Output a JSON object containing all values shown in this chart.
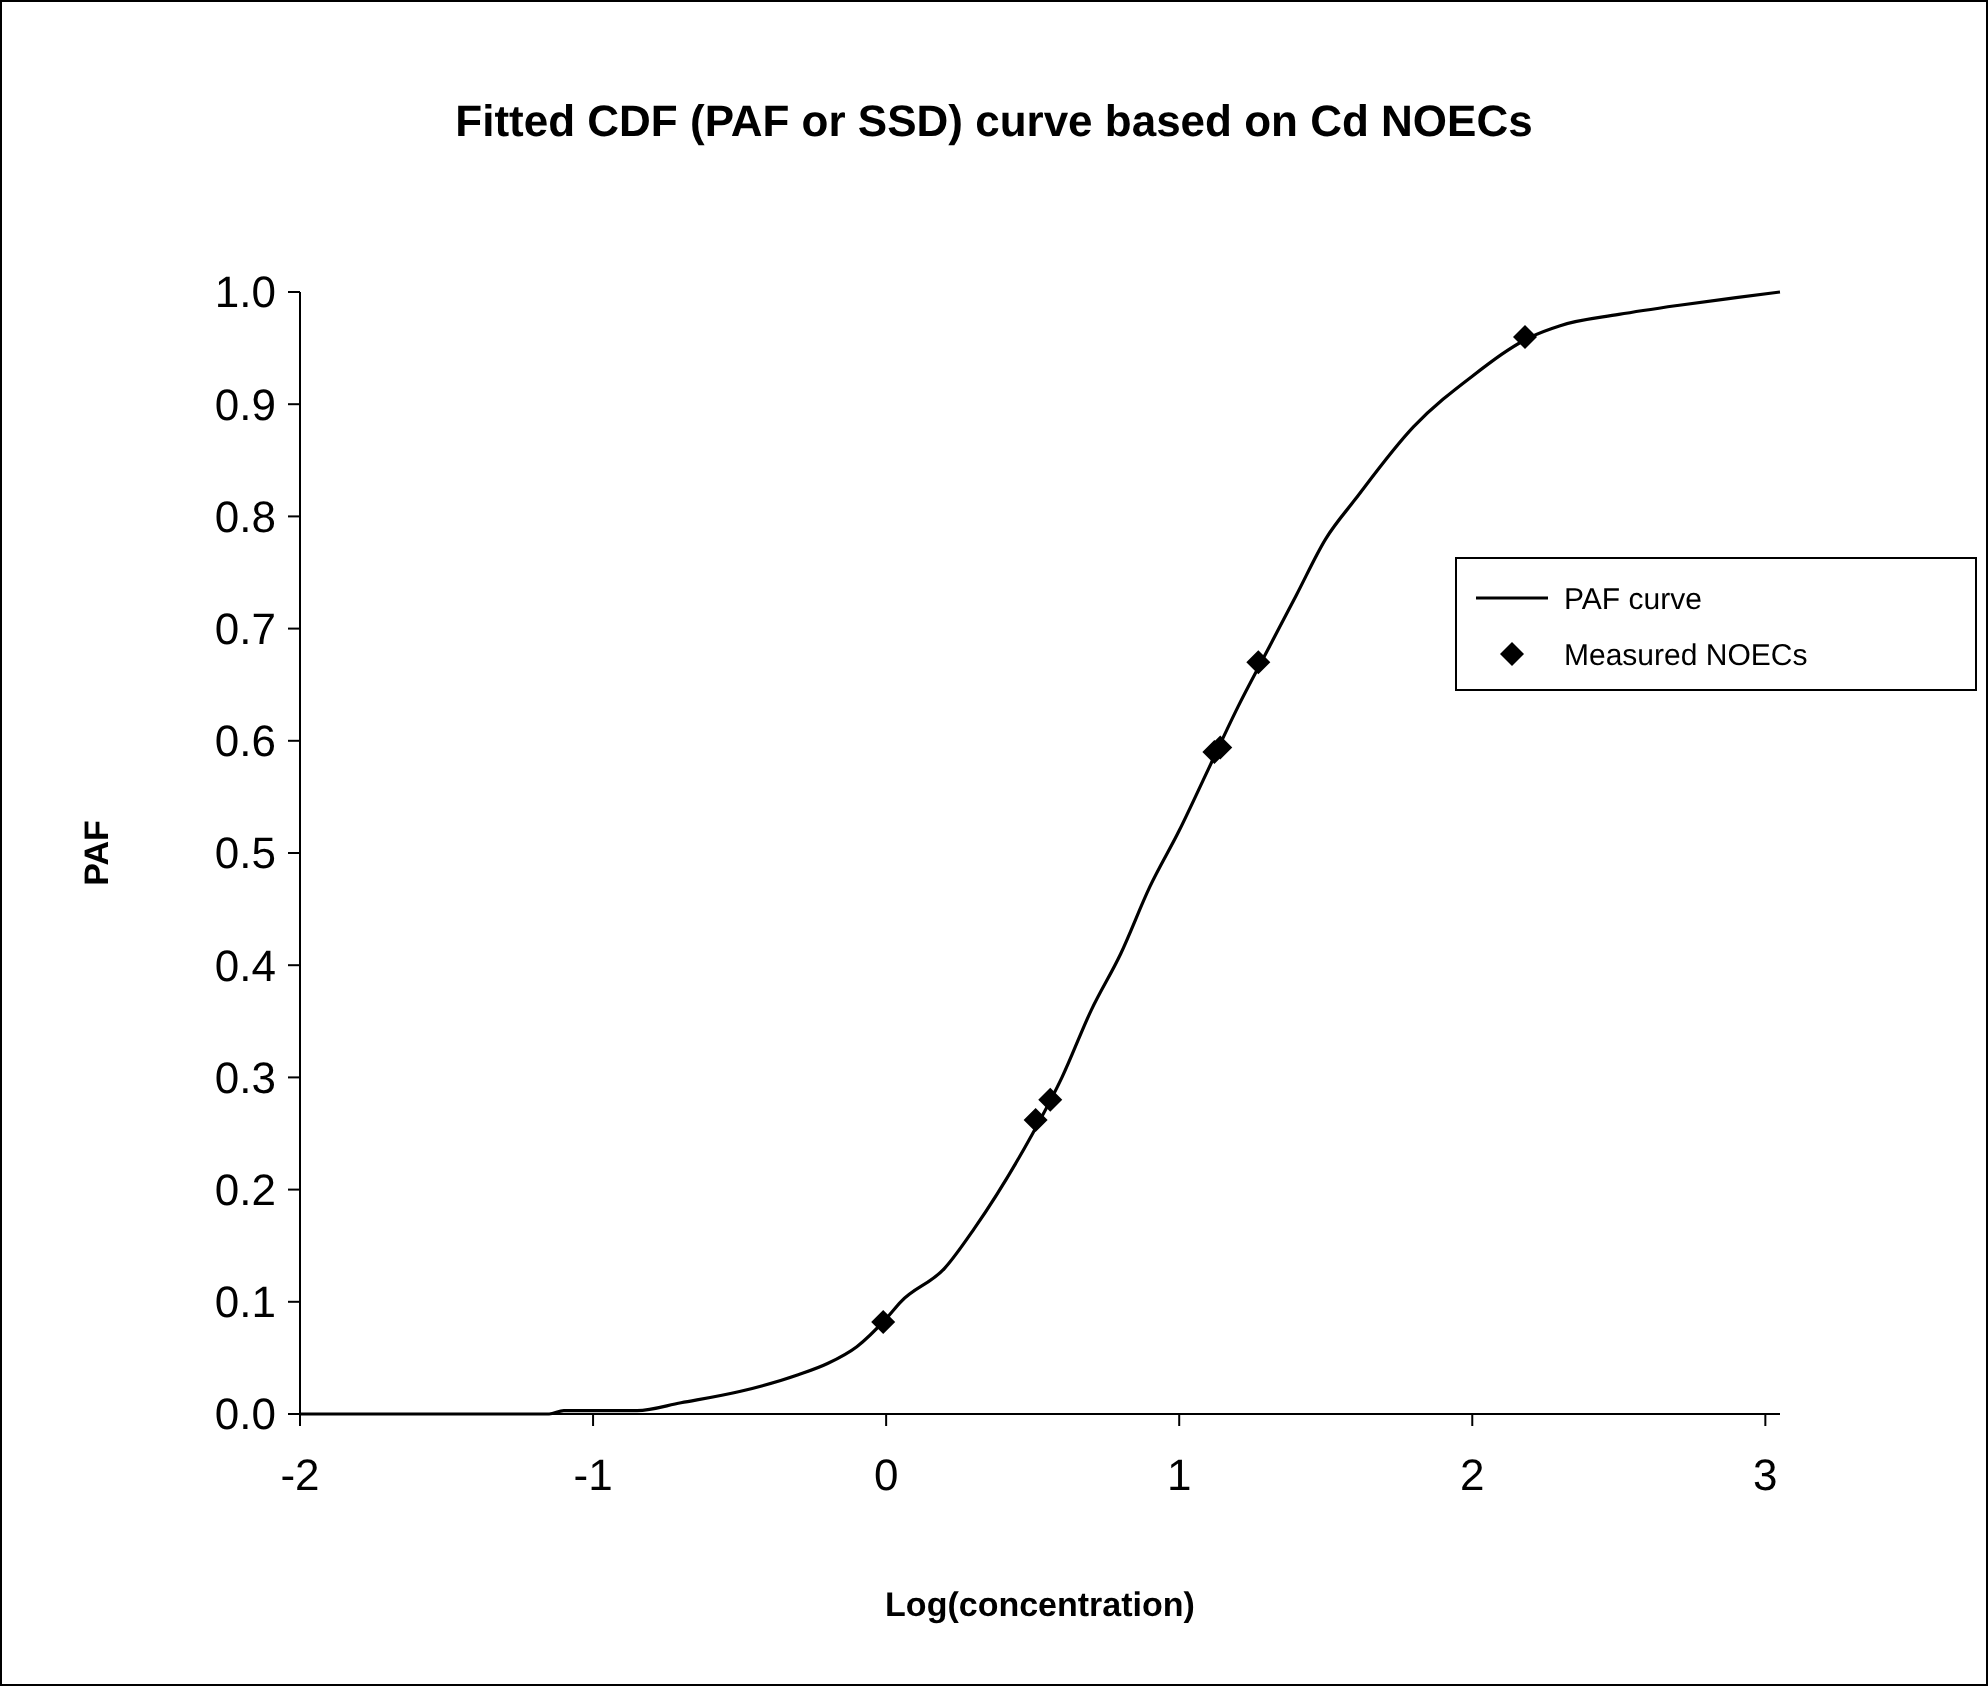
{
  "chart_data": {
    "type": "line",
    "title": "Fitted CDF (PAF or SSD) curve based on Cd NOECs",
    "xlabel": "Log(concentration)",
    "ylabel": "PAF",
    "xlim": [
      -2,
      3.05
    ],
    "xticks": [
      -2,
      -1,
      0,
      1,
      2,
      3
    ],
    "ylim": [
      0,
      1
    ],
    "yticks": [
      {
        "value": 0,
        "label": "0.0"
      },
      0.1,
      0.2,
      0.3,
      0.4,
      0.5,
      0.6,
      0.7,
      0.8,
      0.9,
      {
        "value": 1,
        "label": "1.0"
      }
    ],
    "grid": false,
    "legend": "right",
    "series": [
      {
        "name": "PAF curve",
        "color": "#000000",
        "marker": "none",
        "line_style": "solid",
        "x": [
          -2,
          -1.15,
          -1.1,
          -0.85,
          -0.7,
          -0.5,
          -0.3,
          -0.2,
          -0.1,
          0,
          0.05,
          0.2,
          0.3,
          0.5,
          0.6,
          0.7,
          0.8,
          0.9,
          1.0,
          1.1,
          1.2,
          1.3,
          1.4,
          1.5,
          1.6,
          1.8,
          2.0,
          2.2,
          2.3,
          2.5,
          2.7,
          2.9,
          3.05
        ],
        "values": [
          0,
          0,
          0.003,
          0.003,
          0.01,
          0.02,
          0.035,
          0.045,
          0.06,
          0.085,
          0.1,
          0.13,
          0.165,
          0.25,
          0.3,
          0.36,
          0.41,
          0.47,
          0.52,
          0.575,
          0.63,
          0.68,
          0.73,
          0.78,
          0.815,
          0.88,
          0.925,
          0.96,
          0.97,
          0.98,
          0.988,
          0.995,
          1.0
        ]
      },
      {
        "name": "Measured NOECs",
        "type": "scatter",
        "color": "#000000",
        "marker": "diamond",
        "x": [
          -0.01,
          0.51,
          0.56,
          1.12,
          1.14,
          1.27,
          2.18
        ],
        "values": [
          0.082,
          0.262,
          0.28,
          0.59,
          0.594,
          0.67,
          0.96
        ]
      }
    ]
  }
}
